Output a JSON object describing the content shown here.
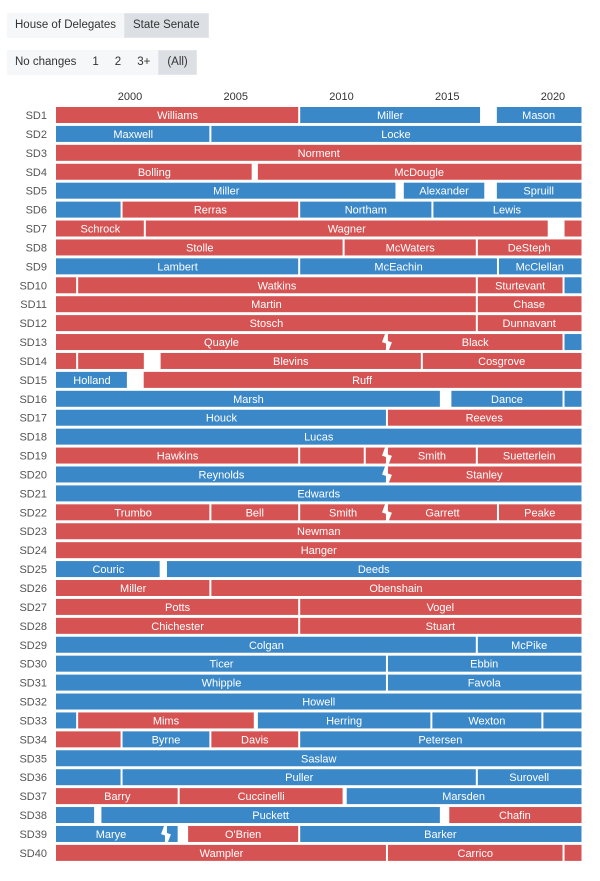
{
  "chamber_toggle": {
    "options": [
      "House of Delegates",
      "State Senate"
    ],
    "selected": "State Senate"
  },
  "change_filter": {
    "options": [
      "No changes",
      "1",
      "2",
      "3+",
      "(All)"
    ],
    "selected": "(All)"
  },
  "colors": {
    "R": "#d65353",
    "D": "#3a88c8"
  },
  "chart_data": {
    "type": "timeline",
    "x_ticks": [
      2000,
      2005,
      2010,
      2015,
      2020
    ],
    "xlim": [
      1996.5,
      2021.35
    ],
    "rows": [
      {
        "label": "SD1",
        "segments": [
          {
            "p": "R",
            "n": "Williams",
            "s": 1996.5,
            "e": 2008.0
          },
          {
            "p": "D",
            "n": "Miller",
            "s": 2008.0,
            "e": 2016.6
          },
          {
            "p": "D",
            "n": "Mason",
            "s": 2017.3,
            "e": 2021.35
          }
        ]
      },
      {
        "label": "SD2",
        "segments": [
          {
            "p": "D",
            "n": "Maxwell",
            "s": 1996.5,
            "e": 2003.8
          },
          {
            "p": "D",
            "n": "Locke",
            "s": 2003.8,
            "e": 2021.35
          }
        ]
      },
      {
        "label": "SD3",
        "segments": [
          {
            "p": "R",
            "n": "Norment",
            "s": 1996.5,
            "e": 2021.35
          }
        ]
      },
      {
        "label": "SD4",
        "segments": [
          {
            "p": "R",
            "n": "Bolling",
            "s": 1996.5,
            "e": 2005.8
          },
          {
            "p": "R",
            "n": "McDougle",
            "s": 2006.0,
            "e": 2021.35
          }
        ]
      },
      {
        "label": "SD5",
        "segments": [
          {
            "p": "D",
            "n": "Miller",
            "s": 1996.5,
            "e": 2012.6
          },
          {
            "p": "D",
            "n": "Alexander",
            "s": 2012.9,
            "e": 2016.8
          },
          {
            "p": "D",
            "n": "Spruill",
            "s": 2017.3,
            "e": 2021.35
          }
        ]
      },
      {
        "label": "SD6",
        "segments": [
          {
            "p": "D",
            "n": "",
            "s": 1996.5,
            "e": 1999.6
          },
          {
            "p": "R",
            "n": "Rerras",
            "s": 1999.6,
            "e": 2008.0
          },
          {
            "p": "D",
            "n": "Northam",
            "s": 2008.0,
            "e": 2014.3
          },
          {
            "p": "D",
            "n": "Lewis",
            "s": 2014.3,
            "e": 2021.35
          }
        ]
      },
      {
        "label": "SD7",
        "segments": [
          {
            "p": "R",
            "n": "Schrock",
            "s": 1996.5,
            "e": 2000.7
          },
          {
            "p": "R",
            "n": "Wagner",
            "s": 2000.7,
            "e": 2019.8
          },
          {
            "p": "R",
            "n": "",
            "s": 2020.5,
            "e": 2021.35
          }
        ]
      },
      {
        "label": "SD8",
        "segments": [
          {
            "p": "R",
            "n": "Stolle",
            "s": 1996.5,
            "e": 2010.1
          },
          {
            "p": "R",
            "n": "McWaters",
            "s": 2010.1,
            "e": 2016.4
          },
          {
            "p": "R",
            "n": "DeSteph",
            "s": 2016.4,
            "e": 2021.35
          }
        ]
      },
      {
        "label": "SD9",
        "segments": [
          {
            "p": "D",
            "n": "Lambert",
            "s": 1996.5,
            "e": 2008.0
          },
          {
            "p": "D",
            "n": "McEachin",
            "s": 2008.0,
            "e": 2017.4
          },
          {
            "p": "D",
            "n": "McClellan",
            "s": 2017.4,
            "e": 2021.35
          }
        ]
      },
      {
        "label": "SD10",
        "segments": [
          {
            "p": "R",
            "n": "",
            "s": 1996.5,
            "e": 1997.5
          },
          {
            "p": "R",
            "n": "Watkins",
            "s": 1997.5,
            "e": 2016.4
          },
          {
            "p": "R",
            "n": "Sturtevant",
            "s": 2016.4,
            "e": 2020.5
          },
          {
            "p": "D",
            "n": "",
            "s": 2020.5,
            "e": 2021.35
          }
        ]
      },
      {
        "label": "SD11",
        "segments": [
          {
            "p": "R",
            "n": "Martin",
            "s": 1996.5,
            "e": 2016.4
          },
          {
            "p": "R",
            "n": "Chase",
            "s": 2016.4,
            "e": 2021.35
          }
        ]
      },
      {
        "label": "SD12",
        "segments": [
          {
            "p": "R",
            "n": "Stosch",
            "s": 1996.5,
            "e": 2016.4
          },
          {
            "p": "R",
            "n": "Dunnavant",
            "s": 2016.4,
            "e": 2021.35
          }
        ]
      },
      {
        "label": "SD13",
        "segments": [
          {
            "p": "R",
            "n": "Quayle",
            "s": 1996.5,
            "e": 2012.15
          },
          {
            "p": "R",
            "n": "Black",
            "s": 2012.15,
            "e": 2020.5,
            "z": true
          },
          {
            "p": "D",
            "n": "",
            "s": 2020.5,
            "e": 2021.35
          }
        ]
      },
      {
        "label": "SD14",
        "segments": [
          {
            "p": "R",
            "n": "",
            "s": 1996.5,
            "e": 1997.5
          },
          {
            "p": "R",
            "n": "",
            "s": 1997.5,
            "e": 2000.7
          },
          {
            "p": "R",
            "n": "Blevins",
            "s": 2001.4,
            "e": 2013.8
          },
          {
            "p": "R",
            "n": "Cosgrove",
            "s": 2013.8,
            "e": 2021.35
          }
        ]
      },
      {
        "label": "SD15",
        "segments": [
          {
            "p": "D",
            "n": "Holland",
            "s": 1996.5,
            "e": 1999.9
          },
          {
            "p": "R",
            "n": "Ruff",
            "s": 2000.6,
            "e": 2021.35
          }
        ]
      },
      {
        "label": "SD16",
        "segments": [
          {
            "p": "D",
            "n": "Marsh",
            "s": 1996.5,
            "e": 2014.7
          },
          {
            "p": "D",
            "n": "Dance",
            "s": 2015.15,
            "e": 2020.5
          },
          {
            "p": "D",
            "n": "",
            "s": 2020.5,
            "e": 2021.35
          }
        ]
      },
      {
        "label": "SD17",
        "segments": [
          {
            "p": "D",
            "n": "Houck",
            "s": 1996.5,
            "e": 2012.15
          },
          {
            "p": "R",
            "n": "Reeves",
            "s": 2012.15,
            "e": 2021.35
          }
        ]
      },
      {
        "label": "SD18",
        "segments": [
          {
            "p": "D",
            "n": "Lucas",
            "s": 1996.5,
            "e": 2021.35
          }
        ]
      },
      {
        "label": "SD19",
        "segments": [
          {
            "p": "R",
            "n": "Hawkins",
            "s": 1996.5,
            "e": 2008.0
          },
          {
            "p": "R",
            "n": "",
            "s": 2008.0,
            "e": 2011.1
          },
          {
            "p": "R",
            "n": "",
            "s": 2011.1,
            "e": 2012.15
          },
          {
            "p": "R",
            "n": "Smith",
            "s": 2012.15,
            "e": 2016.4,
            "z": true
          },
          {
            "p": "R",
            "n": "Suetterlein",
            "s": 2016.4,
            "e": 2021.35
          }
        ]
      },
      {
        "label": "SD20",
        "segments": [
          {
            "p": "D",
            "n": "Reynolds",
            "s": 1996.5,
            "e": 2012.15
          },
          {
            "p": "R",
            "n": "Stanley",
            "s": 2012.15,
            "e": 2021.35,
            "z": true
          }
        ]
      },
      {
        "label": "SD21",
        "segments": [
          {
            "p": "D",
            "n": "Edwards",
            "s": 1996.5,
            "e": 2021.35
          }
        ]
      },
      {
        "label": "SD22",
        "segments": [
          {
            "p": "R",
            "n": "Trumbo",
            "s": 1996.5,
            "e": 2003.8
          },
          {
            "p": "R",
            "n": "Bell",
            "s": 2003.8,
            "e": 2008.0
          },
          {
            "p": "R",
            "n": "Smith",
            "s": 2008.0,
            "e": 2012.15
          },
          {
            "p": "R",
            "n": "Garrett",
            "s": 2012.15,
            "e": 2017.4,
            "z": true
          },
          {
            "p": "R",
            "n": "Peake",
            "s": 2017.4,
            "e": 2021.35
          }
        ]
      },
      {
        "label": "SD23",
        "segments": [
          {
            "p": "R",
            "n": "Newman",
            "s": 1996.5,
            "e": 2021.35
          }
        ]
      },
      {
        "label": "SD24",
        "segments": [
          {
            "p": "R",
            "n": "Hanger",
            "s": 1996.5,
            "e": 2021.35
          }
        ]
      },
      {
        "label": "SD25",
        "segments": [
          {
            "p": "D",
            "n": "Couric",
            "s": 1996.5,
            "e": 2001.45
          },
          {
            "p": "D",
            "n": "Deeds",
            "s": 2001.7,
            "e": 2021.35
          }
        ]
      },
      {
        "label": "SD26",
        "segments": [
          {
            "p": "R",
            "n": "Miller",
            "s": 1996.5,
            "e": 2003.8
          },
          {
            "p": "R",
            "n": "Obenshain",
            "s": 2003.8,
            "e": 2021.35
          }
        ]
      },
      {
        "label": "SD27",
        "segments": [
          {
            "p": "R",
            "n": "Potts",
            "s": 1996.5,
            "e": 2008.0
          },
          {
            "p": "R",
            "n": "Vogel",
            "s": 2008.0,
            "e": 2021.35
          }
        ]
      },
      {
        "label": "SD28",
        "segments": [
          {
            "p": "R",
            "n": "Chichester",
            "s": 1996.5,
            "e": 2008.0
          },
          {
            "p": "R",
            "n": "Stuart",
            "s": 2008.0,
            "e": 2021.35
          }
        ]
      },
      {
        "label": "SD29",
        "segments": [
          {
            "p": "D",
            "n": "Colgan",
            "s": 1996.5,
            "e": 2016.4
          },
          {
            "p": "D",
            "n": "McPike",
            "s": 2016.4,
            "e": 2021.35
          }
        ]
      },
      {
        "label": "SD30",
        "segments": [
          {
            "p": "D",
            "n": "Ticer",
            "s": 1996.5,
            "e": 2012.15
          },
          {
            "p": "D",
            "n": "Ebbin",
            "s": 2012.15,
            "e": 2021.35
          }
        ]
      },
      {
        "label": "SD31",
        "segments": [
          {
            "p": "D",
            "n": "Whipple",
            "s": 1996.5,
            "e": 2012.15
          },
          {
            "p": "D",
            "n": "Favola",
            "s": 2012.15,
            "e": 2021.35
          }
        ]
      },
      {
        "label": "SD32",
        "segments": [
          {
            "p": "D",
            "n": "Howell",
            "s": 1996.5,
            "e": 2021.35
          }
        ]
      },
      {
        "label": "SD33",
        "segments": [
          {
            "p": "D",
            "n": "",
            "s": 1996.5,
            "e": 1997.5
          },
          {
            "p": "R",
            "n": "Mims",
            "s": 1997.5,
            "e": 2005.9
          },
          {
            "p": "D",
            "n": "Herring",
            "s": 2006.0,
            "e": 2014.25
          },
          {
            "p": "D",
            "n": "Wexton",
            "s": 2014.25,
            "e": 2019.5
          },
          {
            "p": "D",
            "n": "",
            "s": 2019.5,
            "e": 2021.35
          }
        ]
      },
      {
        "label": "SD34",
        "segments": [
          {
            "p": "R",
            "n": "",
            "s": 1996.5,
            "e": 1999.6
          },
          {
            "p": "D",
            "n": "Byrne",
            "s": 1999.6,
            "e": 2003.8
          },
          {
            "p": "R",
            "n": "Davis",
            "s": 2003.8,
            "e": 2008.0
          },
          {
            "p": "D",
            "n": "Petersen",
            "s": 2008.0,
            "e": 2021.35
          }
        ]
      },
      {
        "label": "SD35",
        "segments": [
          {
            "p": "D",
            "n": "Saslaw",
            "s": 1996.5,
            "e": 2021.35
          }
        ]
      },
      {
        "label": "SD36",
        "segments": [
          {
            "p": "D",
            "n": "",
            "s": 1996.5,
            "e": 1999.6
          },
          {
            "p": "D",
            "n": "Puller",
            "s": 1999.6,
            "e": 2016.4
          },
          {
            "p": "D",
            "n": "Surovell",
            "s": 2016.4,
            "e": 2021.35
          }
        ]
      },
      {
        "label": "SD37",
        "segments": [
          {
            "p": "R",
            "n": "Barry",
            "s": 1996.5,
            "e": 2002.3
          },
          {
            "p": "R",
            "n": "Cuccinelli",
            "s": 2002.3,
            "e": 2010.1
          },
          {
            "p": "D",
            "n": "Marsden",
            "s": 2010.2,
            "e": 2021.35
          }
        ]
      },
      {
        "label": "SD38",
        "segments": [
          {
            "p": "D",
            "n": "",
            "s": 1996.5,
            "e": 1998.35
          },
          {
            "p": "D",
            "n": "Puckett",
            "s": 1998.6,
            "e": 2014.7
          },
          {
            "p": "R",
            "n": "Chafin",
            "s": 2015.05,
            "e": 2021.35
          }
        ]
      },
      {
        "label": "SD39",
        "segments": [
          {
            "p": "D",
            "n": "Marye",
            "s": 1996.5,
            "e": 2001.7
          },
          {
            "p": "D",
            "n": "",
            "s": 2001.7,
            "e": 2002.3,
            "z": true
          },
          {
            "p": "R",
            "n": "O'Brien",
            "s": 2002.7,
            "e": 2008.0
          },
          {
            "p": "D",
            "n": "Barker",
            "s": 2008.0,
            "e": 2021.35
          }
        ]
      },
      {
        "label": "SD40",
        "segments": [
          {
            "p": "R",
            "n": "Wampler",
            "s": 1996.5,
            "e": 2012.15
          },
          {
            "p": "R",
            "n": "Carrico",
            "s": 2012.15,
            "e": 2020.5
          },
          {
            "p": "R",
            "n": "",
            "s": 2020.5,
            "e": 2021.35
          }
        ]
      }
    ]
  }
}
